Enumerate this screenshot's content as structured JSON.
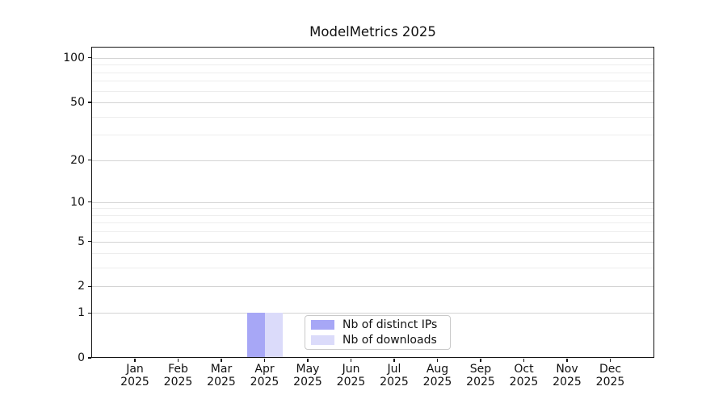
{
  "chart_data": {
    "type": "bar",
    "title": "ModelMetrics 2025",
    "categories": [
      "Jan 2025",
      "Feb 2025",
      "Mar 2025",
      "Apr 2025",
      "May 2025",
      "Jun 2025",
      "Jul 2025",
      "Aug 2025",
      "Sep 2025",
      "Oct 2025",
      "Nov 2025",
      "Dec 2025"
    ],
    "x_ticks": {
      "months": [
        "Jan",
        "Feb",
        "Mar",
        "Apr",
        "May",
        "Jun",
        "Jul",
        "Aug",
        "Sep",
        "Oct",
        "Nov",
        "Dec"
      ],
      "year": "2025"
    },
    "series": [
      {
        "name": "Nb of distinct IPs",
        "color": "#a7a7f6",
        "values": [
          0,
          0,
          0,
          1,
          0,
          0,
          0,
          0,
          0,
          0,
          0,
          0
        ]
      },
      {
        "name": "Nb of downloads",
        "color": "#dbdbfa",
        "values": [
          0,
          0,
          0,
          1,
          0,
          0,
          0,
          0,
          0,
          0,
          0,
          0
        ]
      }
    ],
    "y_axis": {
      "scale": "log1p",
      "major_ticks": [
        0,
        1,
        2,
        5,
        10,
        20,
        50,
        100
      ],
      "minor_ticks": [
        3,
        4,
        6,
        7,
        8,
        9,
        30,
        40,
        60,
        70,
        80,
        90
      ],
      "ylim": [
        0,
        119
      ]
    },
    "legend": {
      "position": "lower center",
      "entries": [
        "Nb of distinct IPs",
        "Nb of downloads"
      ]
    },
    "grid": true
  },
  "style": {
    "grid_major": "#d4d4d4",
    "grid_minor": "#ededed",
    "spine": "#141414",
    "text": "#111111",
    "background": "#ffffff"
  }
}
